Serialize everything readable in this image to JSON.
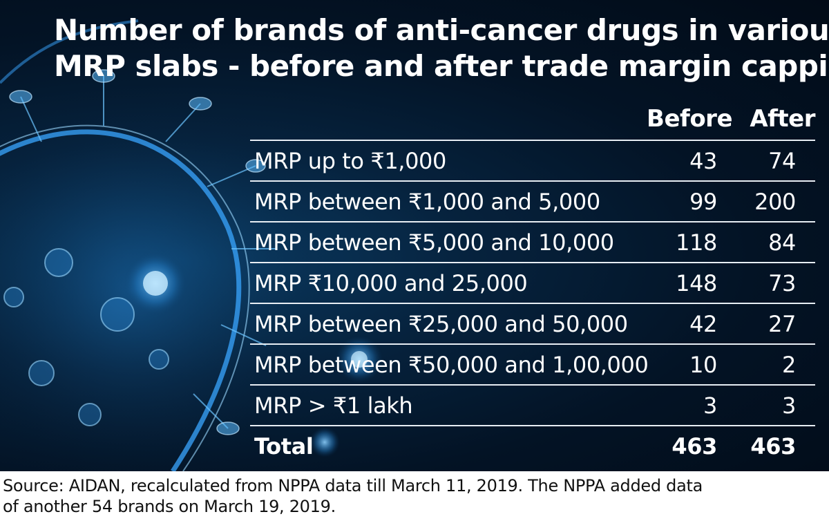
{
  "title": {
    "line1": "Number of brands of anti-cancer drugs in various",
    "line2": "MRP slabs - before and after trade margin capping"
  },
  "columns": {
    "before": "Before",
    "after": "After"
  },
  "chart_data": {
    "type": "table",
    "title": "Number of brands of anti-cancer drugs in various MRP slabs - before and after trade margin capping",
    "columns": [
      "Before",
      "After"
    ],
    "rows": [
      {
        "label": "MRP up to ₹1,000",
        "before": "43",
        "after": "74"
      },
      {
        "label": "MRP between ₹1,000 and 5,000",
        "before": "99",
        "after": "200"
      },
      {
        "label": "MRP between ₹5,000 and 10,000",
        "before": "118",
        "after": "84"
      },
      {
        "label": "MRP ₹10,000 and 25,000",
        "before": "148",
        "after": "73"
      },
      {
        "label": "MRP between ₹25,000 and 50,000",
        "before": "42",
        "after": "27"
      },
      {
        "label": "MRP between ₹50,000 and 1,00,000",
        "before": "10",
        "after": "2"
      },
      {
        "label": "MRP > ₹1 lakh",
        "before": "3",
        "after": "3"
      }
    ],
    "total": {
      "label": "Total",
      "before": "463",
      "after": "463"
    }
  },
  "source": {
    "line1": "Source: AIDAN, recalculated from NPPA data till March 11, 2019. The NPPA added data",
    "line2": "of another 54  brands on March 19, 2019."
  },
  "colors": {
    "background_dark": "#031325",
    "virus_glow": "#4fb3ff",
    "text": "#ffffff",
    "rule": "#e8eef4"
  }
}
